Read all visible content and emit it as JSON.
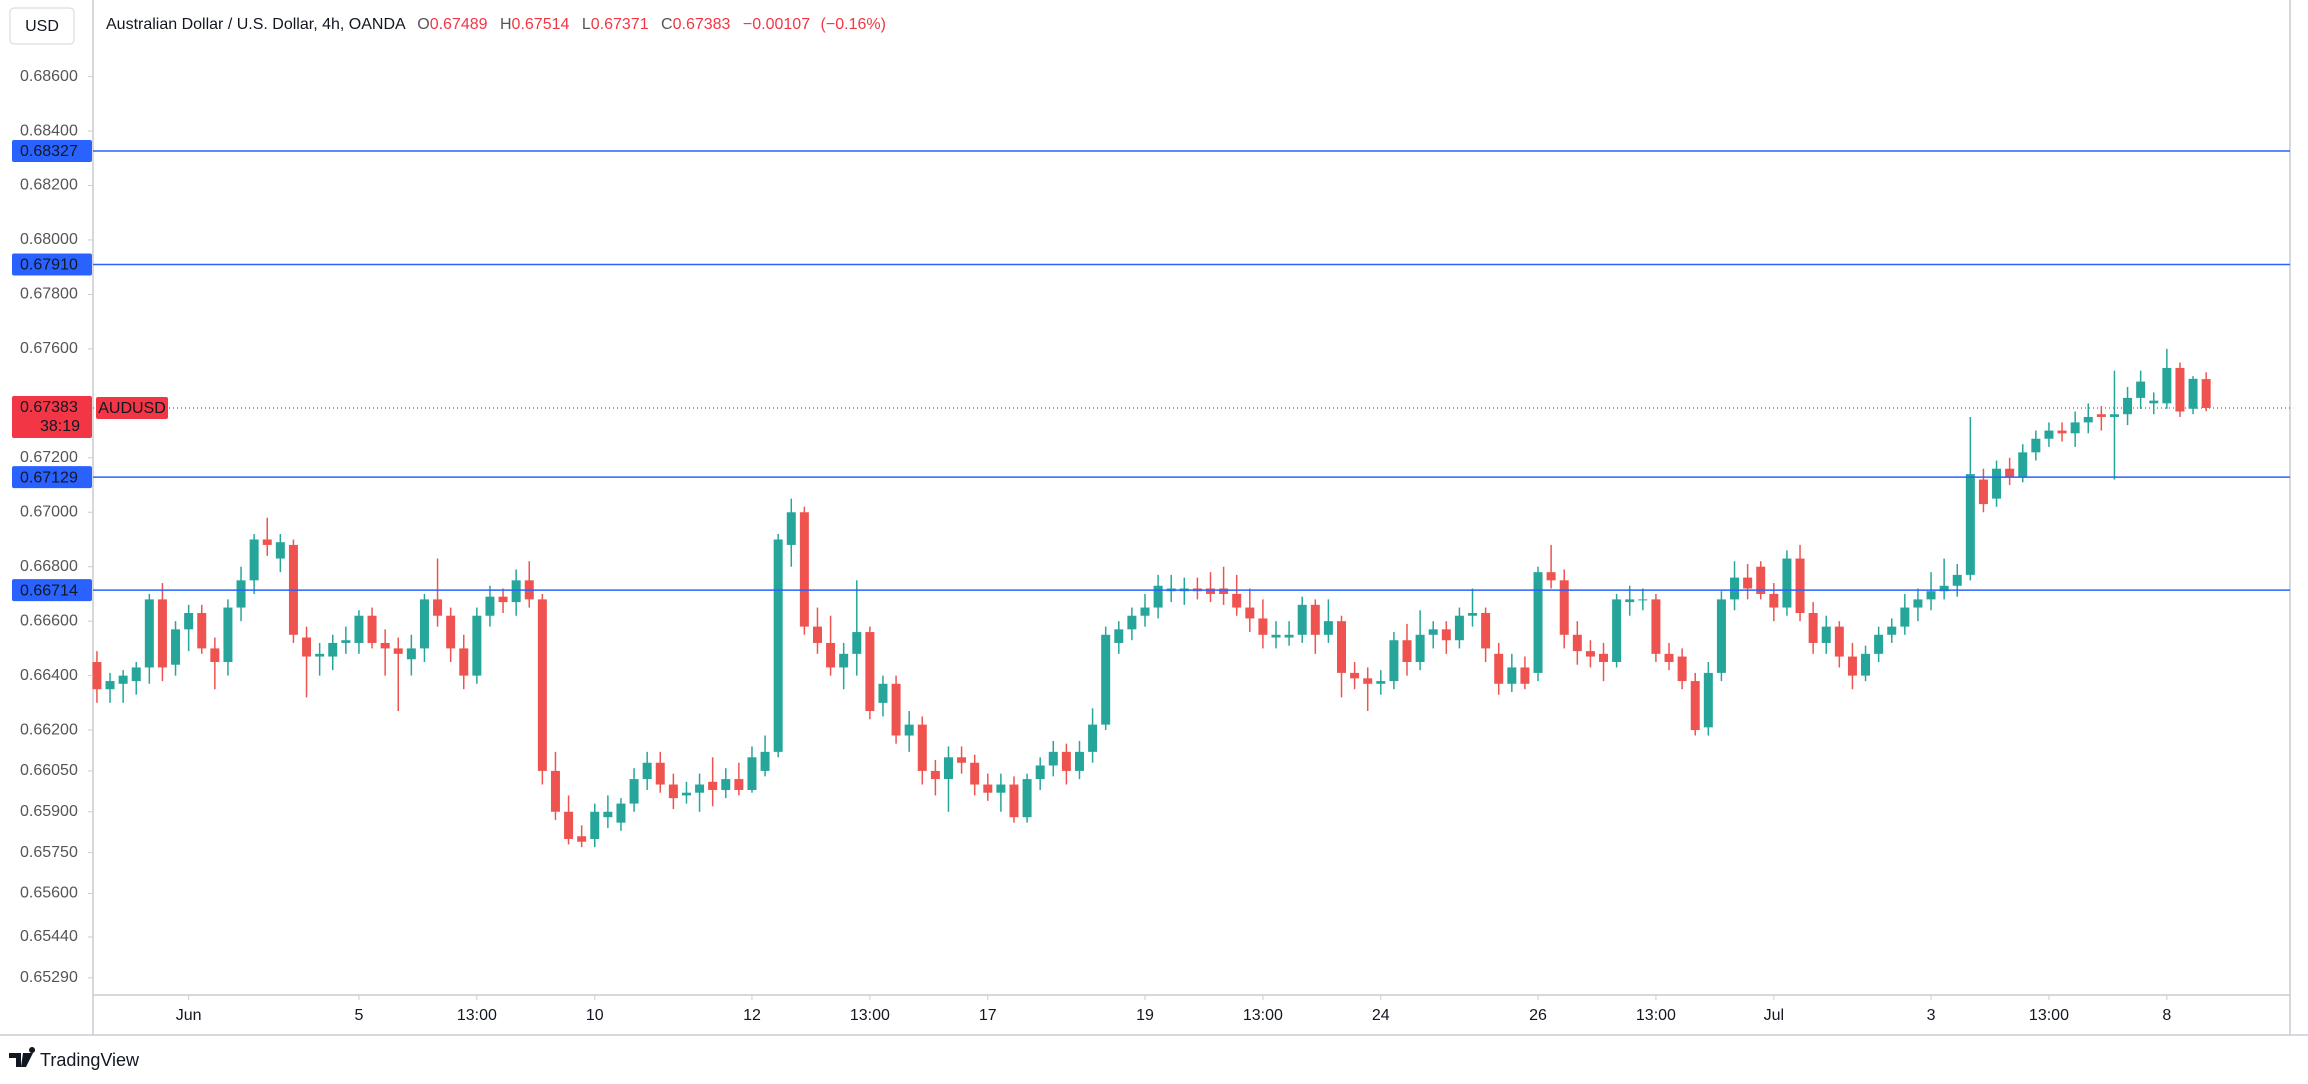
{
  "chart_data": {
    "type": "candlestick",
    "title": "Australian Dollar / U.S. Dollar, 4h, OANDA",
    "currency": "USD",
    "brand": "TradingView",
    "symbol": "AUDUSD",
    "countdown": "38:19",
    "legend": {
      "open_label": "O",
      "open": 0.67489,
      "high_label": "H",
      "high": 0.67514,
      "low_label": "L",
      "low": 0.67371,
      "close_label": "C",
      "close": 0.67383,
      "change": {
        "value": -0.00107,
        "label": "−0.00107"
      },
      "change_pct": {
        "value": -0.16,
        "label": "(−0.16%)"
      }
    },
    "up_color": "#26a69a",
    "down_color": "#ef5350",
    "level_color": "#2962ff",
    "last_price": 0.67383,
    "ylim": [
      0.65227,
      0.68852
    ],
    "yticks": [
      {
        "value": 0.686,
        "label": "0.68600"
      },
      {
        "value": 0.684,
        "label": "0.68400"
      },
      {
        "value": 0.682,
        "label": "0.68200"
      },
      {
        "value": 0.68,
        "label": "0.68000"
      },
      {
        "value": 0.678,
        "label": "0.67800"
      },
      {
        "value": 0.676,
        "label": "0.67600"
      },
      {
        "value": 0.672,
        "label": "0.67200"
      },
      {
        "value": 0.67,
        "label": "0.67000"
      },
      {
        "value": 0.668,
        "label": "0.66800"
      },
      {
        "value": 0.666,
        "label": "0.66600"
      },
      {
        "value": 0.664,
        "label": "0.66400"
      },
      {
        "value": 0.662,
        "label": "0.66200"
      },
      {
        "value": 0.6605,
        "label": "0.66050"
      },
      {
        "value": 0.659,
        "label": "0.65900"
      },
      {
        "value": 0.6575,
        "label": "0.65750"
      },
      {
        "value": 0.656,
        "label": "0.65600"
      },
      {
        "value": 0.6544,
        "label": "0.65440"
      },
      {
        "value": 0.6529,
        "label": "0.65290"
      }
    ],
    "levels": [
      0.68327,
      {
        "value": 0.6791,
        "label": "0.67910"
      },
      0.67129,
      0.66714
    ],
    "xlim": [
      -0.3,
      167.4
    ],
    "xticks": [
      {
        "value": 7,
        "label": "Jun"
      },
      {
        "value": 20,
        "label": "5"
      },
      {
        "value": 29,
        "label": "13:00"
      },
      {
        "value": 38,
        "label": "10"
      },
      {
        "value": 50,
        "label": "12"
      },
      {
        "value": 59,
        "label": "13:00"
      },
      {
        "value": 68,
        "label": "17"
      },
      {
        "value": 80,
        "label": "19"
      },
      {
        "value": 89,
        "label": "13:00"
      },
      {
        "value": 98,
        "label": "24"
      },
      {
        "value": 110,
        "label": "26"
      },
      {
        "value": 119,
        "label": "13:00"
      },
      {
        "value": 128,
        "label": "Jul"
      },
      {
        "value": 140,
        "label": "3"
      },
      {
        "value": 149,
        "label": "13:00"
      },
      {
        "value": 158,
        "label": "8"
      }
    ],
    "ohlc": [
      [
        0.6645,
        0.6649,
        0.663,
        0.6635
      ],
      [
        0.6635,
        0.6641,
        0.663,
        0.6638
      ],
      [
        0.6637,
        0.6642,
        0.663,
        0.664
      ],
      [
        0.6638,
        0.6645,
        0.6633,
        0.6643
      ],
      [
        0.6643,
        0.667,
        0.6637,
        0.6668
      ],
      [
        0.6668,
        0.6674,
        0.6638,
        0.6643
      ],
      [
        0.6644,
        0.666,
        0.664,
        0.6657
      ],
      [
        0.6657,
        0.6666,
        0.6649,
        0.6663
      ],
      [
        0.6663,
        0.6666,
        0.6648,
        0.665
      ],
      [
        0.665,
        0.6654,
        0.6635,
        0.6645
      ],
      [
        0.6645,
        0.6668,
        0.664,
        0.6665
      ],
      [
        0.6665,
        0.668,
        0.666,
        0.6675
      ],
      [
        0.6675,
        0.6692,
        0.667,
        0.669
      ],
      [
        0.669,
        0.6698,
        0.6684,
        0.6688
      ],
      [
        0.6683,
        0.6692,
        0.6678,
        0.6689
      ],
      [
        0.6688,
        0.669,
        0.6652,
        0.6655
      ],
      [
        0.6654,
        0.6658,
        0.6632,
        0.6647
      ],
      [
        0.6647,
        0.6652,
        0.664,
        0.6648
      ],
      [
        0.6647,
        0.6655,
        0.6642,
        0.6652
      ],
      [
        0.6652,
        0.6658,
        0.6648,
        0.6653
      ],
      [
        0.6652,
        0.6664,
        0.6648,
        0.6662
      ],
      [
        0.6662,
        0.6665,
        0.665,
        0.6652
      ],
      [
        0.6652,
        0.6657,
        0.664,
        0.665
      ],
      [
        0.665,
        0.6654,
        0.6627,
        0.6648
      ],
      [
        0.6646,
        0.6655,
        0.664,
        0.665
      ],
      [
        0.665,
        0.667,
        0.6645,
        0.6668
      ],
      [
        0.6668,
        0.6683,
        0.6658,
        0.6662
      ],
      [
        0.6662,
        0.6665,
        0.6645,
        0.665
      ],
      [
        0.665,
        0.6655,
        0.6635,
        0.664
      ],
      [
        0.664,
        0.6665,
        0.6637,
        0.6662
      ],
      [
        0.6662,
        0.6673,
        0.6658,
        0.6669
      ],
      [
        0.6669,
        0.6672,
        0.6663,
        0.6667
      ],
      [
        0.6667,
        0.6679,
        0.6662,
        0.6675
      ],
      [
        0.6675,
        0.6682,
        0.6665,
        0.6668
      ],
      [
        0.6668,
        0.667,
        0.66,
        0.6605
      ],
      [
        0.6605,
        0.6612,
        0.6587,
        0.659
      ],
      [
        0.659,
        0.6596,
        0.6578,
        0.658
      ],
      [
        0.6581,
        0.6585,
        0.6577,
        0.6579
      ],
      [
        0.658,
        0.6593,
        0.6577,
        0.659
      ],
      [
        0.6588,
        0.6596,
        0.6584,
        0.659
      ],
      [
        0.6586,
        0.6595,
        0.6583,
        0.6593
      ],
      [
        0.6593,
        0.6606,
        0.659,
        0.6602
      ],
      [
        0.6602,
        0.6612,
        0.6598,
        0.6608
      ],
      [
        0.6608,
        0.6612,
        0.6597,
        0.66
      ],
      [
        0.66,
        0.6604,
        0.6591,
        0.6595
      ],
      [
        0.6596,
        0.6601,
        0.6593,
        0.6597
      ],
      [
        0.6597,
        0.6604,
        0.659,
        0.66
      ],
      [
        0.6601,
        0.661,
        0.6592,
        0.6598
      ],
      [
        0.6598,
        0.6606,
        0.6595,
        0.6602
      ],
      [
        0.6602,
        0.6608,
        0.6596,
        0.6598
      ],
      [
        0.6598,
        0.6614,
        0.6597,
        0.661
      ],
      [
        0.6605,
        0.6618,
        0.6603,
        0.6612
      ],
      [
        0.6612,
        0.6692,
        0.661,
        0.669
      ],
      [
        0.6688,
        0.6705,
        0.668,
        0.67
      ],
      [
        0.67,
        0.6702,
        0.6655,
        0.6658
      ],
      [
        0.6658,
        0.6665,
        0.6648,
        0.6652
      ],
      [
        0.6652,
        0.6662,
        0.664,
        0.6643
      ],
      [
        0.6643,
        0.6652,
        0.6635,
        0.6648
      ],
      [
        0.6648,
        0.6675,
        0.664,
        0.6656
      ],
      [
        0.6656,
        0.6658,
        0.6624,
        0.6627
      ],
      [
        0.663,
        0.664,
        0.6625,
        0.6637
      ],
      [
        0.6637,
        0.664,
        0.6615,
        0.6618
      ],
      [
        0.6618,
        0.6627,
        0.6612,
        0.6622
      ],
      [
        0.6622,
        0.6625,
        0.66,
        0.6605
      ],
      [
        0.6605,
        0.6609,
        0.6596,
        0.6602
      ],
      [
        0.6602,
        0.6614,
        0.659,
        0.661
      ],
      [
        0.661,
        0.6614,
        0.6604,
        0.6608
      ],
      [
        0.6608,
        0.6611,
        0.6596,
        0.66
      ],
      [
        0.66,
        0.6604,
        0.6594,
        0.6597
      ],
      [
        0.6597,
        0.6604,
        0.659,
        0.66
      ],
      [
        0.66,
        0.6603,
        0.6586,
        0.6588
      ],
      [
        0.6588,
        0.6604,
        0.6586,
        0.6602
      ],
      [
        0.6602,
        0.661,
        0.6598,
        0.6607
      ],
      [
        0.6607,
        0.6616,
        0.6603,
        0.6612
      ],
      [
        0.6612,
        0.6615,
        0.66,
        0.6605
      ],
      [
        0.6605,
        0.6616,
        0.6602,
        0.6612
      ],
      [
        0.6612,
        0.6628,
        0.6608,
        0.6622
      ],
      [
        0.6622,
        0.6658,
        0.662,
        0.6655
      ],
      [
        0.6652,
        0.666,
        0.6648,
        0.6657
      ],
      [
        0.6657,
        0.6665,
        0.6653,
        0.6662
      ],
      [
        0.6662,
        0.667,
        0.6658,
        0.6665
      ],
      [
        0.6665,
        0.6677,
        0.6661,
        0.6673
      ],
      [
        0.6671,
        0.6677,
        0.6667,
        0.6672
      ],
      [
        0.6671,
        0.6676,
        0.6666,
        0.6672
      ],
      [
        0.6672,
        0.6676,
        0.6668,
        0.6671
      ],
      [
        0.6672,
        0.6678,
        0.6667,
        0.667
      ],
      [
        0.6672,
        0.668,
        0.6666,
        0.667
      ],
      [
        0.667,
        0.6677,
        0.6662,
        0.6665
      ],
      [
        0.6665,
        0.6672,
        0.6656,
        0.6661
      ],
      [
        0.6661,
        0.6668,
        0.665,
        0.6655
      ],
      [
        0.6654,
        0.666,
        0.665,
        0.6655
      ],
      [
        0.6654,
        0.666,
        0.6651,
        0.6655
      ],
      [
        0.6655,
        0.6669,
        0.6652,
        0.6666
      ],
      [
        0.6666,
        0.6668,
        0.6648,
        0.6655
      ],
      [
        0.6655,
        0.6668,
        0.6652,
        0.666
      ],
      [
        0.666,
        0.6662,
        0.6632,
        0.6641
      ],
      [
        0.6641,
        0.6645,
        0.6635,
        0.6639
      ],
      [
        0.6639,
        0.6643,
        0.6627,
        0.6637
      ],
      [
        0.6637,
        0.6642,
        0.6633,
        0.6638
      ],
      [
        0.6638,
        0.6656,
        0.6635,
        0.6653
      ],
      [
        0.6653,
        0.6659,
        0.664,
        0.6645
      ],
      [
        0.6645,
        0.6664,
        0.6642,
        0.6655
      ],
      [
        0.6655,
        0.666,
        0.665,
        0.6657
      ],
      [
        0.6657,
        0.666,
        0.6648,
        0.6653
      ],
      [
        0.6653,
        0.6665,
        0.665,
        0.6662
      ],
      [
        0.6662,
        0.6672,
        0.6658,
        0.6663
      ],
      [
        0.6663,
        0.6665,
        0.6645,
        0.665
      ],
      [
        0.6648,
        0.6652,
        0.6633,
        0.6637
      ],
      [
        0.6637,
        0.6648,
        0.6634,
        0.6643
      ],
      [
        0.6643,
        0.6647,
        0.6635,
        0.6637
      ],
      [
        0.6641,
        0.668,
        0.6638,
        0.6678
      ],
      [
        0.6678,
        0.6688,
        0.6672,
        0.6675
      ],
      [
        0.6675,
        0.6679,
        0.665,
        0.6655
      ],
      [
        0.6655,
        0.666,
        0.6644,
        0.6649
      ],
      [
        0.6649,
        0.6653,
        0.6643,
        0.6647
      ],
      [
        0.6648,
        0.6652,
        0.6638,
        0.6645
      ],
      [
        0.6645,
        0.667,
        0.6643,
        0.6668
      ],
      [
        0.6667,
        0.6673,
        0.6662,
        0.6668
      ],
      [
        0.6668,
        0.6672,
        0.6664,
        0.6668
      ],
      [
        0.6668,
        0.667,
        0.6645,
        0.6648
      ],
      [
        0.6648,
        0.6652,
        0.6642,
        0.6645
      ],
      [
        0.6647,
        0.665,
        0.6635,
        0.6638
      ],
      [
        0.6638,
        0.6641,
        0.6618,
        0.662
      ],
      [
        0.6621,
        0.6645,
        0.6618,
        0.6641
      ],
      [
        0.6641,
        0.6671,
        0.6638,
        0.6668
      ],
      [
        0.6668,
        0.6682,
        0.6664,
        0.6676
      ],
      [
        0.6676,
        0.6681,
        0.6668,
        0.6672
      ],
      [
        0.668,
        0.6682,
        0.6668,
        0.667
      ],
      [
        0.667,
        0.6674,
        0.666,
        0.6665
      ],
      [
        0.6665,
        0.6686,
        0.6662,
        0.6683
      ],
      [
        0.6683,
        0.6688,
        0.666,
        0.6663
      ],
      [
        0.6663,
        0.6667,
        0.6648,
        0.6652
      ],
      [
        0.6652,
        0.6662,
        0.6648,
        0.6658
      ],
      [
        0.6658,
        0.666,
        0.6643,
        0.6647
      ],
      [
        0.6647,
        0.6652,
        0.6635,
        0.664
      ],
      [
        0.664,
        0.6651,
        0.6638,
        0.6648
      ],
      [
        0.6648,
        0.6658,
        0.6645,
        0.6655
      ],
      [
        0.6655,
        0.6661,
        0.6652,
        0.6658
      ],
      [
        0.6658,
        0.667,
        0.6655,
        0.6665
      ],
      [
        0.6665,
        0.6672,
        0.666,
        0.6668
      ],
      [
        0.6668,
        0.6678,
        0.6664,
        0.6671
      ],
      [
        0.6671,
        0.6683,
        0.6668,
        0.6673
      ],
      [
        0.6673,
        0.6681,
        0.6669,
        0.6677
      ],
      [
        0.6677,
        0.6735,
        0.6675,
        0.6714
      ],
      [
        0.6712,
        0.6716,
        0.67,
        0.6703
      ],
      [
        0.6705,
        0.6719,
        0.6702,
        0.6716
      ],
      [
        0.6716,
        0.672,
        0.671,
        0.6713
      ],
      [
        0.6713,
        0.6725,
        0.6711,
        0.6722
      ],
      [
        0.6722,
        0.673,
        0.6719,
        0.6727
      ],
      [
        0.6727,
        0.6733,
        0.6724,
        0.673
      ],
      [
        0.673,
        0.6733,
        0.6726,
        0.6729
      ],
      [
        0.6729,
        0.6737,
        0.6724,
        0.6733
      ],
      [
        0.6733,
        0.674,
        0.6729,
        0.6735
      ],
      [
        0.6736,
        0.6739,
        0.673,
        0.6735
      ],
      [
        0.6735,
        0.6752,
        0.6712,
        0.6736
      ],
      [
        0.6736,
        0.6746,
        0.6732,
        0.6742
      ],
      [
        0.6742,
        0.6752,
        0.6738,
        0.6748
      ],
      [
        0.674,
        0.6744,
        0.6736,
        0.6741
      ],
      [
        0.674,
        0.676,
        0.6738,
        0.6753
      ],
      [
        0.6753,
        0.6755,
        0.6735,
        0.6737
      ],
      [
        0.6738,
        0.675,
        0.6736,
        0.6749
      ],
      [
        0.67489,
        0.67514,
        0.67371,
        0.67383
      ]
    ]
  }
}
